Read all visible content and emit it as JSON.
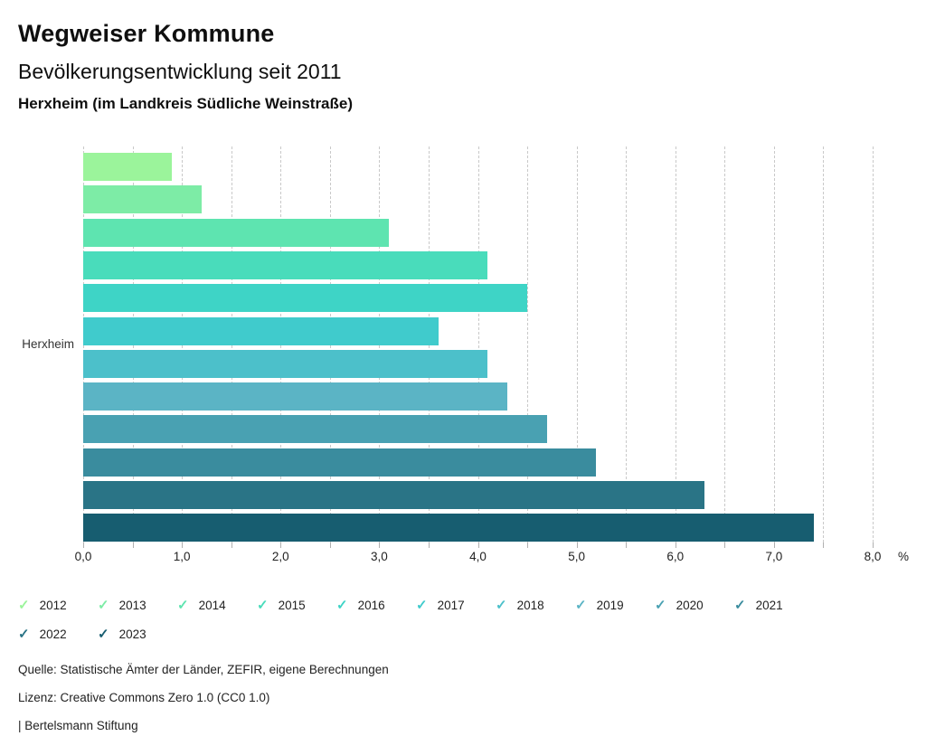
{
  "header": {
    "title": "Wegweiser Kommune",
    "subtitle": "Bevölkerungsentwicklung seit 2011",
    "region": "Herxheim (im Landkreis Südliche Weinstraße)"
  },
  "chart_data": {
    "type": "bar",
    "orientation": "horizontal",
    "title": "Bevölkerungsentwicklung seit 2011",
    "group_label": "Herxheim",
    "categories": [
      "2012",
      "2013",
      "2014",
      "2015",
      "2016",
      "2017",
      "2018",
      "2019",
      "2020",
      "2021",
      "2022",
      "2023"
    ],
    "values": [
      0.9,
      1.2,
      3.1,
      4.1,
      4.5,
      3.6,
      4.1,
      4.3,
      4.7,
      5.2,
      6.3,
      7.4
    ],
    "colors": [
      "#9bf49b",
      "#7deca6",
      "#5ee4b0",
      "#49dcbb",
      "#3ed4c6",
      "#40cbcc",
      "#4cc0ca",
      "#5bb4c5",
      "#49a1b2",
      "#3a8c9e",
      "#2a7486",
      "#175d70"
    ],
    "xlim": [
      0,
      8
    ],
    "grid_step": 0.5,
    "grid": true,
    "x_tick_labels": [
      "0,0",
      "1,0",
      "2,0",
      "3,0",
      "4,0",
      "5,0",
      "6,0",
      "7,0",
      "8,0"
    ],
    "x_unit": "%",
    "legend_position": "bottom",
    "check_icon_glyph": "✓"
  },
  "footer": {
    "lines": [
      "Quelle: Statistische Ämter der Länder, ZEFIR, eigene Berechnungen",
      "Lizenz: Creative Commons Zero 1.0 (CC0 1.0)",
      "| Bertelsmann Stiftung"
    ]
  }
}
